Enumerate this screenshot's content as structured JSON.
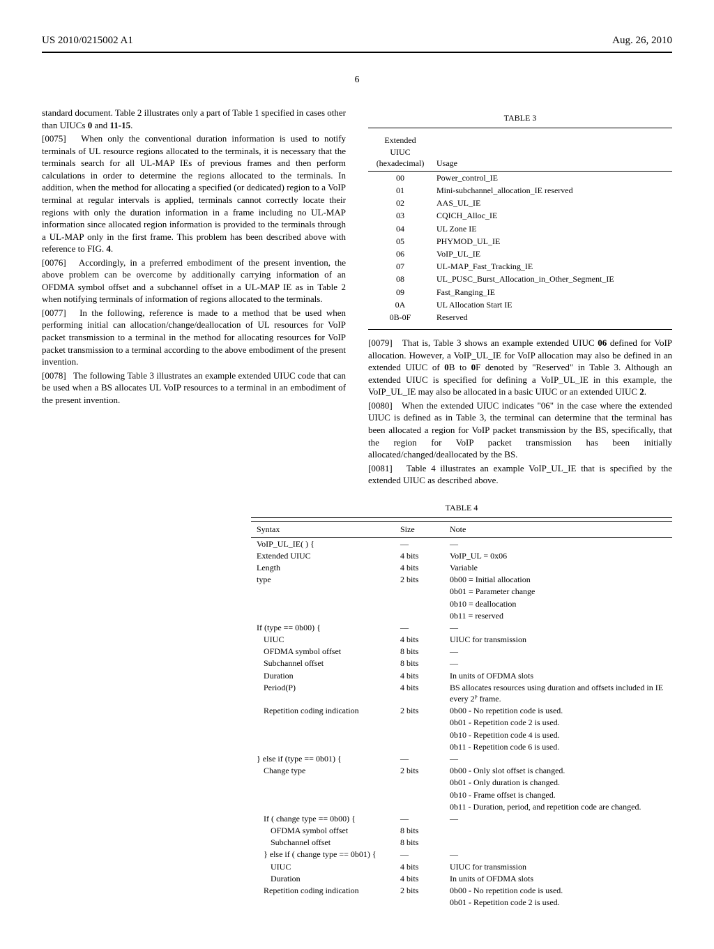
{
  "header": {
    "pub_number": "US 2010/0215002 A1",
    "pub_date": "Aug. 26, 2010",
    "page_number": "6"
  },
  "left_column": {
    "p_intro": "standard document. Table 2 illustrates only a part of Table 1 specified in cases other than UIUCs ",
    "p_intro_bold": "0",
    "p_intro_mid": " and ",
    "p_intro_bold2": "11-15",
    "p_intro_end": ".",
    "p0075_num": "[0075]",
    "p0075": "When only the conventional duration information is used to notify terminals of UL resource regions allocated to the terminals, it is necessary that the terminals search for all UL-MAP IEs of previous frames and then perform calculations in order to determine the regions allocated to the terminals. In addition, when the method for allocating a specified (or dedicated) region to a VoIP terminal at regular intervals is applied, terminals cannot correctly locate their regions with only the duration information in a frame including no UL-MAP information since allocated region information is provided to the terminals through a UL-MAP only in the first frame. This problem has been described above with reference to FIG. ",
    "p0075_fig": "4",
    "p0075_end": ".",
    "p0076_num": "[0076]",
    "p0076": "Accordingly, in a preferred embodiment of the present invention, the above problem can be overcome by additionally carrying information of an OFDMA symbol offset and a subchannel offset in a UL-MAP IE as in Table 2 when notifying terminals of information of regions allocated to the terminals.",
    "p0077_num": "[0077]",
    "p0077": "In the following, reference is made to a method that be used when performing initial can allocation/change/deallocation of UL resources for VoIP packet transmission to a terminal in the method for allocating resources for VoIP packet transmission to a terminal according to the above embodiment of the present invention.",
    "p0078_num": "[0078]",
    "p0078": "The following Table 3 illustrates an example extended UIUC code that can be used when a BS allocates UL VoIP resources to a terminal in an embodiment of the present invention."
  },
  "right_column": {
    "table3_title": "TABLE 3",
    "table3_head_col1_l1": "Extended",
    "table3_head_col1_l2": "UIUC",
    "table3_head_col1_l3": "(hexadecimal)",
    "table3_head_col2": "Usage",
    "table3_rows": [
      {
        "c": "00",
        "u": "Power_control_IE"
      },
      {
        "c": "01",
        "u": "Mini-subchannel_allocation_IE reserved"
      },
      {
        "c": "02",
        "u": "AAS_UL_IE"
      },
      {
        "c": "03",
        "u": "CQICH_Alloc_IE"
      },
      {
        "c": "04",
        "u": "UL Zone IE"
      },
      {
        "c": "05",
        "u": "PHYMOD_UL_IE"
      },
      {
        "c": "06",
        "u": "VoIP_UL_IE"
      },
      {
        "c": "07",
        "u": "UL-MAP_Fast_Tracking_IE"
      },
      {
        "c": "08",
        "u": "UL_PUSC_Burst_Allocation_in_Other_Segment_IE"
      },
      {
        "c": "09",
        "u": "Fast_Ranging_IE"
      },
      {
        "c": "0A",
        "u": "UL Allocation Start IE"
      },
      {
        "c": "0B-0F",
        "u": "Reserved"
      }
    ],
    "p0079_num": "[0079]",
    "p0079_a": "That is, Table 3 shows an example extended UIUC ",
    "p0079_b1": "06",
    "p0079_b": " defined for VoIP allocation. However, a VoIP_UL_IE for VoIP allocation may also be defined in an extended UIUC of ",
    "p0079_b2": "0",
    "p0079_c": "B to ",
    "p0079_b3": "0",
    "p0079_d": "F denoted by \"Reserved\" in Table 3. Although an extended UIUC is specified for defining a VoIP_UL_IE in this example, the VoIP_UL_IE may also be allocated in a basic UIUC or an extended UIUC ",
    "p0079_b4": "2",
    "p0079_e": ".",
    "p0080_num": "[0080]",
    "p0080": "When the extended UIUC indicates \"06\" in the case where the extended UIUC is defined as in Table 3, the terminal can determine that the terminal has been allocated a region for VoIP packet transmission by the BS, specifically, that the region for VoIP packet transmission has been initially allocated/changed/deallocated by the BS.",
    "p0081_num": "[0081]",
    "p0081": "Table 4 illustrates an example VoIP_UL_IE that is specified by the extended UIUC as described above."
  },
  "table4": {
    "title": "TABLE 4",
    "head": {
      "c1": "Syntax",
      "c2": "Size",
      "c3": "Note"
    },
    "rows": [
      {
        "c1": "VoIP_UL_IE( ) {",
        "c2": "—",
        "c3": "—"
      },
      {
        "c1": "Extended UIUC",
        "c2": "4 bits",
        "c3": "VoIP_UL = 0x06"
      },
      {
        "c1": "Length",
        "c2": "4 bits",
        "c3": "Variable"
      },
      {
        "c1": "type",
        "c2": "2 bits",
        "c3": "0b00 = Initial allocation"
      },
      {
        "c1": "",
        "c2": "",
        "c3": "0b01 = Parameter change"
      },
      {
        "c1": "",
        "c2": "",
        "c3": "0b10 = deallocation"
      },
      {
        "c1": "",
        "c2": "",
        "c3": "0b11 = reserved"
      },
      {
        "c1": "If (type == 0b00) {",
        "c2": "—",
        "c3": "—"
      },
      {
        "c1": "UIUC",
        "i": 1,
        "c2": "4 bits",
        "c3": "UIUC for transmission"
      },
      {
        "c1": "OFDMA symbol offset",
        "i": 1,
        "c2": "8 bits",
        "c3": "—"
      },
      {
        "c1": "Subchannel offset",
        "i": 1,
        "c2": "8 bits",
        "c3": "—"
      },
      {
        "c1": "Duration",
        "i": 1,
        "c2": "4 bits",
        "c3": "In units of OFDMA slots"
      },
      {
        "c1": "Period(P)",
        "i": 1,
        "c2": "4 bits",
        "c3": "BS allocates resources using duration and offsets included in IE every 2ᴾ frame."
      },
      {
        "c1": "Repetition coding indication",
        "i": 1,
        "c2": "2 bits",
        "c3": "0b00 - No repetition code is used."
      },
      {
        "c1": "",
        "c2": "",
        "c3": "0b01 - Repetition code 2 is used."
      },
      {
        "c1": "",
        "c2": "",
        "c3": "0b10 - Repetition code 4 is used."
      },
      {
        "c1": "",
        "c2": "",
        "c3": "0b11 - Repetition code 6 is used."
      },
      {
        "c1": "} else if (type == 0b01) {",
        "c2": "—",
        "c3": "—"
      },
      {
        "c1": "Change type",
        "i": 1,
        "c2": "2 bits",
        "c3": "0b00 - Only slot offset is changed."
      },
      {
        "c1": "",
        "c2": "",
        "c3": "0b01 - Only duration is changed."
      },
      {
        "c1": "",
        "c2": "",
        "c3": "0b10 - Frame offset is changed."
      },
      {
        "c1": "",
        "c2": "",
        "c3": "0b11 - Duration, period, and repetition code are changed."
      },
      {
        "c1": "If ( change type == 0b00) {",
        "i": 1,
        "c2": "—",
        "c3": "—"
      },
      {
        "c1": "OFDMA symbol offset",
        "i": 2,
        "c2": "8 bits",
        "c3": ""
      },
      {
        "c1": "Subchannel offset",
        "i": 2,
        "c2": "8 bits",
        "c3": ""
      },
      {
        "c1": "}  else if ( change type == 0b01) {",
        "i": 1,
        "c2": "—",
        "c3": "—"
      },
      {
        "c1": "UIUC",
        "i": 2,
        "c2": "4 bits",
        "c3": "UIUC for transmission"
      },
      {
        "c1": "Duration",
        "i": 2,
        "c2": "4 bits",
        "c3": "In units of OFDMA slots"
      },
      {
        "c1": "Repetition coding indication",
        "i": 1,
        "c2": "2 bits",
        "c3": "0b00 - No repetition code is used."
      },
      {
        "c1": "",
        "c2": "",
        "c3": "0b01 - Repetition code 2 is used."
      }
    ]
  }
}
